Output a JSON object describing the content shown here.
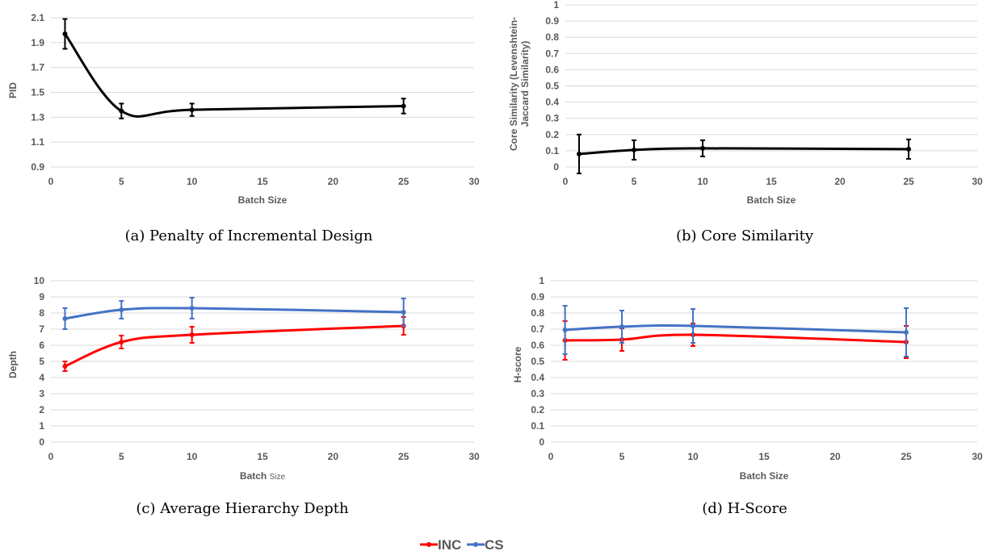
{
  "chart_data": [
    {
      "id": "pid",
      "type": "line",
      "x": [
        1,
        5,
        10,
        25
      ],
      "series": [
        {
          "values": [
            1.97,
            1.35,
            1.36,
            1.39
          ],
          "errors": [
            0.12,
            0.06,
            0.05,
            0.06
          ],
          "color": "#000000"
        }
      ],
      "xlabel": "Batch Size",
      "ylabel": "PID",
      "xlim": [
        0,
        30
      ],
      "ylim": [
        0.9,
        2.1
      ],
      "xticks": [
        0,
        5,
        10,
        15,
        20,
        25,
        30
      ],
      "yticks": [
        "0.9",
        "1.1",
        "1.3",
        "1.5",
        "1.7",
        "1.9",
        "2.1"
      ],
      "grid": true,
      "caption": "(a) Penalty of Incremental Design"
    },
    {
      "id": "core",
      "type": "line",
      "x": [
        1,
        5,
        10,
        25
      ],
      "series": [
        {
          "values": [
            0.08,
            0.105,
            0.115,
            0.11
          ],
          "errors": [
            0.12,
            0.06,
            0.05,
            0.06
          ],
          "color": "#000000"
        }
      ],
      "xlabel": "Batch Size",
      "ylabel_lines": [
        "Core Similarity (Levenshtein-",
        "Jaccard Similarity)"
      ],
      "xlim": [
        0,
        30
      ],
      "ylim": [
        0,
        1
      ],
      "xticks": [
        0,
        5,
        10,
        15,
        20,
        25,
        30
      ],
      "yticks": [
        "0",
        "0.1",
        "0.2",
        "0.3",
        "0.4",
        "0.5",
        "0.6",
        "0.7",
        "0.8",
        "0.9",
        "1"
      ],
      "grid": true,
      "caption": "(b) Core Similarity"
    },
    {
      "id": "depth",
      "type": "line",
      "x": [
        1,
        5,
        10,
        25
      ],
      "series": [
        {
          "name": "INC",
          "values": [
            4.7,
            6.2,
            6.65,
            7.2
          ],
          "errors": [
            0.3,
            0.4,
            0.5,
            0.55
          ],
          "color": "#ff0000"
        },
        {
          "name": "CS",
          "values": [
            7.65,
            8.2,
            8.3,
            8.05
          ],
          "errors": [
            0.65,
            0.55,
            0.65,
            0.85
          ],
          "color": "#4472c4"
        }
      ],
      "xlabel": "Batch",
      "xlabel_small": "Size",
      "ylabel": "Depth",
      "xlim": [
        0,
        30
      ],
      "ylim": [
        0,
        10
      ],
      "xticks": [
        0,
        5,
        10,
        15,
        20,
        25,
        30
      ],
      "yticks": [
        "0",
        "1",
        "2",
        "3",
        "4",
        "5",
        "6",
        "7",
        "8",
        "9",
        "10"
      ],
      "grid": true,
      "caption": "(c) Average Hierarchy Depth"
    },
    {
      "id": "hscore",
      "type": "line",
      "x": [
        1,
        5,
        10,
        25
      ],
      "series": [
        {
          "name": "INC",
          "values": [
            0.63,
            0.635,
            0.665,
            0.62
          ],
          "errors": [
            0.12,
            0.07,
            0.07,
            0.1
          ],
          "color": "#ff0000"
        },
        {
          "name": "CS",
          "values": [
            0.695,
            0.715,
            0.72,
            0.68
          ],
          "errors": [
            0.15,
            0.1,
            0.105,
            0.15
          ],
          "color": "#4472c4"
        }
      ],
      "xlabel": "Batch Size",
      "ylabel": "H-score",
      "xlim": [
        0,
        30
      ],
      "ylim": [
        0,
        1
      ],
      "xticks": [
        0,
        5,
        10,
        15,
        20,
        25,
        30
      ],
      "yticks": [
        "0",
        "0.1",
        "0.2",
        "0.3",
        "0.4",
        "0.5",
        "0.6",
        "0.7",
        "0.8",
        "0.9",
        "1"
      ],
      "grid": true,
      "caption": "(d) H-Score"
    }
  ],
  "legend": {
    "placement": "bottom-center",
    "items": [
      {
        "label": "INC",
        "color": "#ff0000"
      },
      {
        "label": "CS",
        "color": "#4472c4"
      }
    ]
  }
}
